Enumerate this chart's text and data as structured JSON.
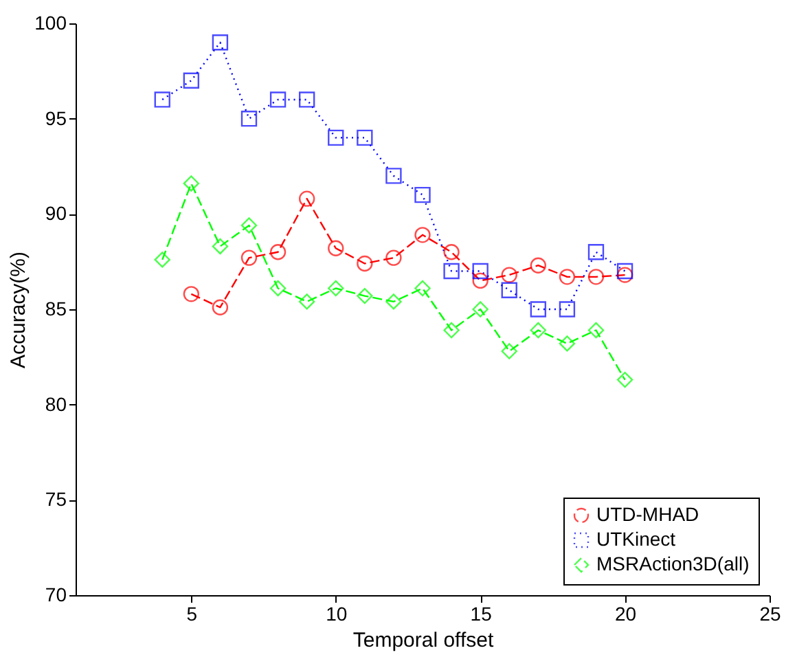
{
  "chart_data": {
    "type": "line",
    "xlabel": "Temporal offset",
    "ylabel": "Accuracy(%)",
    "xlim": [
      1,
      25
    ],
    "xticks": [
      5,
      10,
      15,
      20,
      25
    ],
    "ylim": [
      70,
      100
    ],
    "yticks": [
      70,
      75,
      80,
      85,
      90,
      95,
      100
    ],
    "grid": false,
    "legend": "bottom right",
    "series": [
      {
        "name": "UTD-MHAD",
        "color": "#ff0000",
        "marker": "circle",
        "line_style": "dashed",
        "x": [
          5,
          6,
          7,
          8,
          9,
          10,
          11,
          12,
          13,
          14,
          15,
          16,
          17,
          18,
          19,
          20
        ],
        "values": [
          85.8,
          85.1,
          87.7,
          88.0,
          90.8,
          88.2,
          87.4,
          87.7,
          88.9,
          88.0,
          86.5,
          86.8,
          87.3,
          86.7,
          86.7,
          86.8
        ]
      },
      {
        "name": "UTKinect",
        "color": "#0000ff",
        "marker": "square",
        "line_style": "dotted",
        "x": [
          4,
          5,
          6,
          7,
          8,
          9,
          10,
          11,
          12,
          13,
          14,
          15,
          16,
          17,
          18,
          19,
          20
        ],
        "values": [
          96,
          97,
          99,
          95,
          96,
          96,
          94,
          94,
          92,
          91,
          87,
          87,
          86,
          85,
          85,
          88,
          87
        ]
      },
      {
        "name": "MSRAction3D(all)",
        "color": "#00ff00",
        "marker": "diamond",
        "line_style": "dashed",
        "x": [
          4,
          5,
          6,
          7,
          8,
          9,
          10,
          11,
          12,
          13,
          14,
          15,
          16,
          17,
          18,
          19,
          20
        ],
        "values": [
          87.6,
          91.6,
          88.3,
          89.4,
          86.1,
          85.4,
          86.1,
          85.7,
          85.4,
          86.1,
          83.9,
          85.0,
          82.8,
          83.9,
          83.2,
          83.9,
          81.3
        ]
      }
    ]
  }
}
